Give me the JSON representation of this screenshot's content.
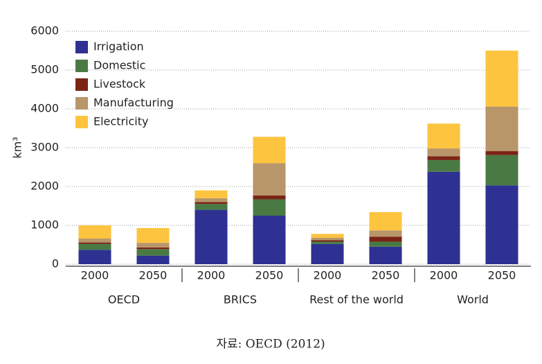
{
  "chart_data": {
    "type": "stacked_bar",
    "y_label": "km³",
    "categories": [
      "2000",
      "2050",
      "2000",
      "2050",
      "2000",
      "2050",
      "2000",
      "2050"
    ],
    "groups": [
      "OECD",
      "BRICS",
      "Rest of the world",
      "World"
    ],
    "series": [
      {
        "name": "Irrigation",
        "color": "#2e3192",
        "values": [
          370,
          220,
          1400,
          1250,
          520,
          450,
          2380,
          2030
        ]
      },
      {
        "name": "Domestic",
        "color": "#4a7a44",
        "values": [
          150,
          170,
          150,
          420,
          60,
          130,
          300,
          780
        ]
      },
      {
        "name": "Livestock",
        "color": "#7b2416",
        "values": [
          40,
          40,
          50,
          100,
          40,
          130,
          100,
          100
        ]
      },
      {
        "name": "Manufacturing",
        "color": "#b8966a",
        "values": [
          100,
          120,
          100,
          830,
          60,
          160,
          200,
          1150
        ]
      },
      {
        "name": "Electricity",
        "color": "#fdc43f",
        "values": [
          340,
          380,
          200,
          680,
          100,
          470,
          640,
          1440
        ]
      }
    ],
    "ylim": [
      0,
      6000
    ],
    "yticks": [
      0,
      1000,
      2000,
      3000,
      4000,
      5000,
      6000
    ],
    "grid": true,
    "legend": "top-left",
    "source": "자료: OECD (2012)"
  }
}
